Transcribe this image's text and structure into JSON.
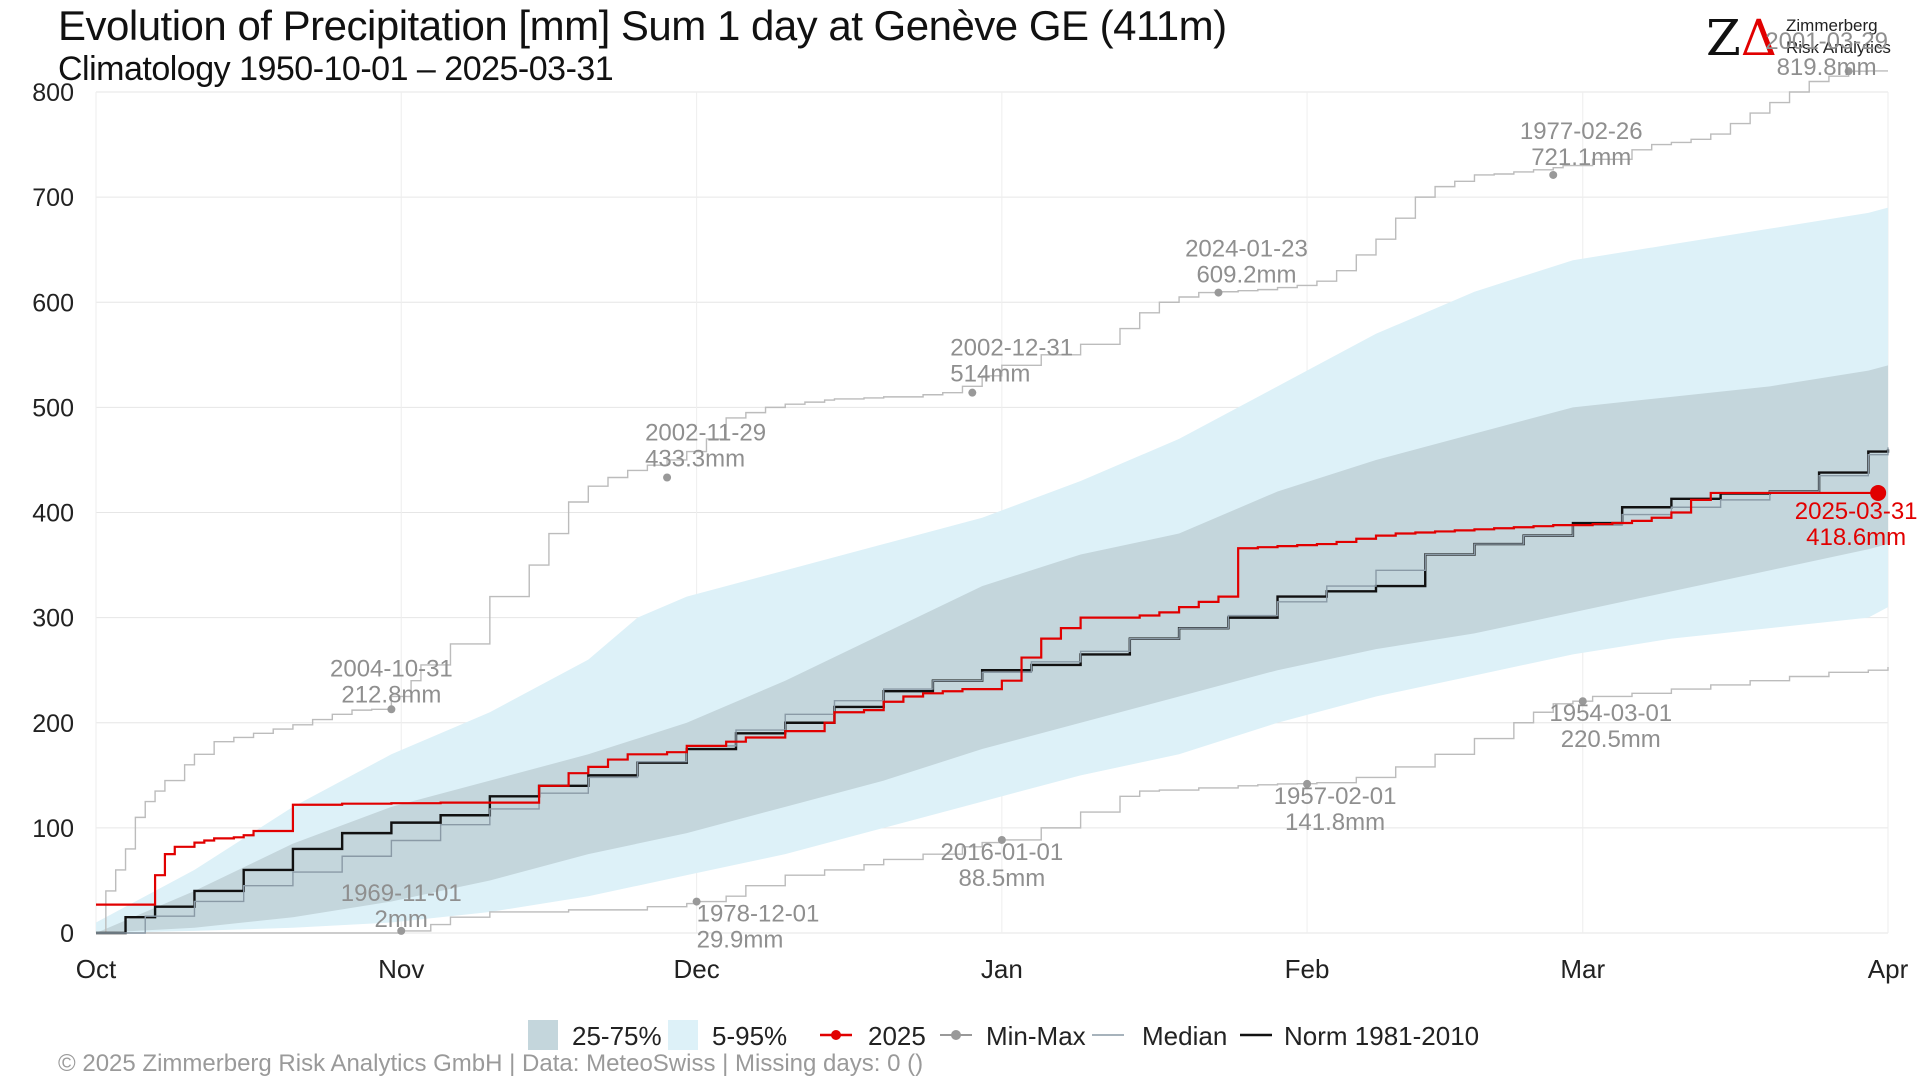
{
  "header": {
    "title": "Evolution of Precipitation [mm] Sum 1 day at Genève  GE (411m)",
    "subtitle": "Climatology 1950-10-01 – 2025-03-31"
  },
  "logo": {
    "line1": "Zimmerberg",
    "line2": "Risk Analytics"
  },
  "footer": {
    "credit": "©  2025 Zimmerberg Risk Analytics GmbH | Data: MeteoSwiss | Missing days: 0 ()"
  },
  "legend": {
    "items": [
      {
        "label": "25-75%"
      },
      {
        "label": "5-95%"
      },
      {
        "label": "2025"
      },
      {
        "label": "Min-Max"
      },
      {
        "label": "Median"
      },
      {
        "label": "Norm 1981-2010"
      }
    ]
  },
  "colors": {
    "band_25_75": "#c4d6dc",
    "band_5_95": "#ddf1f8",
    "current": "#e10000",
    "minmax": "#bcbcbc",
    "median": "#8a9aa6",
    "norm": "#111111",
    "annotation": "#8f8f8f"
  },
  "chart_data": {
    "type": "line",
    "x_unit": "days since Oct 1",
    "xlim": [
      0,
      182
    ],
    "ylim": [
      0,
      800
    ],
    "yticks": [
      0,
      100,
      200,
      300,
      400,
      500,
      600,
      700,
      800
    ],
    "month_ticks": [
      {
        "label": "Oct",
        "day": 0
      },
      {
        "label": "Nov",
        "day": 31
      },
      {
        "label": "Dec",
        "day": 61
      },
      {
        "label": "Jan",
        "day": 92
      },
      {
        "label": "Feb",
        "day": 123
      },
      {
        "label": "Mar",
        "day": 151
      },
      {
        "label": "Apr",
        "day": 182
      }
    ],
    "series": [
      {
        "name": "Max",
        "x": [
          0,
          1,
          2,
          3,
          4,
          5,
          6,
          7,
          9,
          10,
          12,
          14,
          16,
          18,
          20,
          22,
          24,
          26,
          28,
          30,
          32,
          33,
          36,
          40,
          44,
          46,
          48,
          50,
          52,
          54,
          56,
          58,
          60,
          62,
          64,
          66,
          68,
          70,
          72,
          74,
          75,
          78,
          80,
          84,
          86,
          88,
          90,
          92,
          96,
          100,
          104,
          106,
          108,
          110,
          112,
          114,
          116,
          118,
          120,
          122,
          124,
          126,
          128,
          130,
          132,
          134,
          136,
          138,
          140,
          142,
          144,
          146,
          148,
          149,
          152,
          156,
          158,
          160,
          162,
          164,
          166,
          168,
          170,
          172,
          174,
          176,
          178,
          180,
          181,
          182
        ],
        "values": [
          0,
          40,
          60,
          80,
          110,
          125,
          135,
          145,
          160,
          170,
          182,
          186,
          190,
          194,
          198,
          203,
          208,
          212,
          212.8,
          225,
          240,
          255,
          275,
          320,
          350,
          380,
          410,
          425,
          433.3,
          440,
          445,
          450,
          458,
          470,
          490,
          495,
          500,
          503,
          505,
          507,
          508,
          509,
          510,
          512,
          514,
          520,
          530,
          540,
          550,
          560,
          575,
          590,
          600,
          605,
          609.2,
          610,
          611,
          612,
          614,
          616,
          620,
          630,
          645,
          660,
          680,
          700,
          710,
          715,
          721.1,
          722,
          724,
          726,
          728,
          730,
          736,
          745,
          750,
          752,
          755,
          760,
          770,
          780,
          790,
          800,
          810,
          815,
          819.8,
          820,
          820,
          820
        ]
      },
      {
        "name": "Min",
        "x": [
          0,
          31,
          34,
          36,
          40,
          48,
          56,
          60,
          61,
          64,
          66,
          70,
          74,
          78,
          80,
          84,
          88,
          90,
          92,
          96,
          100,
          104,
          106,
          108,
          112,
          116,
          118,
          120,
          122,
          124,
          128,
          132,
          136,
          140,
          144,
          146,
          148,
          150,
          152,
          156,
          160,
          164,
          168,
          172,
          176,
          180,
          182
        ],
        "values": [
          0,
          2,
          8,
          15,
          20,
          22,
          25,
          28,
          29.9,
          35,
          45,
          55,
          60,
          65,
          70,
          75,
          82,
          86,
          88.5,
          100,
          115,
          130,
          135,
          136,
          138,
          140,
          141,
          141.8,
          142,
          143,
          148,
          158,
          170,
          185,
          200,
          210,
          218,
          220.5,
          225,
          228,
          232,
          236,
          240,
          244,
          248,
          250,
          253
        ]
      },
      {
        "name": "Norm 1981-2010",
        "x": [
          0,
          3,
          6,
          10,
          15,
          20,
          25,
          30,
          35,
          40,
          45,
          50,
          55,
          60,
          65,
          70,
          75,
          80,
          85,
          90,
          95,
          100,
          105,
          110,
          115,
          120,
          125,
          130,
          135,
          140,
          145,
          150,
          155,
          160,
          165,
          170,
          175,
          180,
          182
        ],
        "values": [
          0,
          15,
          25,
          40,
          60,
          80,
          95,
          105,
          112,
          130,
          140,
          150,
          162,
          175,
          190,
          200,
          215,
          230,
          240,
          250,
          255,
          265,
          280,
          290,
          300,
          320,
          325,
          330,
          360,
          370,
          378,
          390,
          405,
          413,
          418,
          420,
          438,
          458,
          460
        ]
      },
      {
        "name": "Median",
        "x": [
          0,
          5,
          10,
          15,
          20,
          25,
          30,
          35,
          40,
          45,
          50,
          55,
          60,
          65,
          70,
          75,
          80,
          85,
          90,
          95,
          100,
          105,
          110,
          115,
          120,
          125,
          130,
          135,
          140,
          145,
          150,
          155,
          160,
          165,
          170,
          175,
          180,
          182
        ],
        "values": [
          0,
          16,
          30,
          45,
          58,
          73,
          88,
          103,
          118,
          133,
          148,
          163,
          178,
          193,
          208,
          221,
          232,
          240,
          248,
          258,
          268,
          280,
          290,
          302,
          315,
          330,
          345,
          360,
          370,
          378,
          388,
          398,
          405,
          412,
          420,
          435,
          455,
          462
        ]
      },
      {
        "name": "2025",
        "x": [
          0,
          5,
          6,
          7,
          8,
          10,
          11,
          12,
          14,
          15,
          16,
          20,
          25,
          30,
          35,
          36,
          40,
          44,
          45,
          48,
          50,
          52,
          54,
          58,
          60,
          64,
          66,
          70,
          74,
          75,
          78,
          80,
          82,
          84,
          86,
          88,
          90,
          92,
          94,
          96,
          98,
          100,
          102,
          104,
          106,
          108,
          110,
          112,
          114,
          116,
          118,
          120,
          122,
          124,
          126,
          128,
          130,
          132,
          134,
          136,
          138,
          140,
          142,
          144,
          146,
          148,
          150,
          152,
          154,
          156,
          158,
          160,
          162,
          164,
          166,
          168,
          170,
          172,
          174,
          176,
          178,
          180,
          181
        ],
        "values": [
          27,
          27,
          55,
          75,
          82,
          86,
          88,
          90,
          91,
          93,
          97,
          122,
          123,
          123.5,
          124,
          124,
          124,
          124,
          140,
          152,
          158,
          165,
          170,
          172,
          178,
          182,
          186,
          192,
          200,
          210,
          212,
          220,
          225,
          228,
          230,
          232,
          232,
          240,
          262,
          280,
          290,
          300,
          300,
          300,
          302,
          305,
          310,
          315,
          320,
          366,
          367,
          368,
          369,
          370,
          372,
          375,
          378,
          380,
          381,
          382,
          383,
          384,
          385,
          386,
          387,
          388,
          388,
          389,
          390,
          392,
          395,
          400,
          412,
          418.6,
          418.6,
          418.6,
          418.6,
          418.6,
          418.6,
          418.6,
          418.6,
          418.6,
          418.6
        ]
      }
    ],
    "bands": [
      {
        "name": "25-75%",
        "x": [
          0,
          10,
          20,
          30,
          40,
          50,
          60,
          70,
          80,
          90,
          100,
          110,
          120,
          130,
          140,
          150,
          160,
          170,
          180,
          182
        ],
        "lower": [
          0,
          5,
          15,
          30,
          50,
          75,
          95,
          120,
          145,
          175,
          200,
          225,
          250,
          270,
          285,
          305,
          325,
          345,
          365,
          370
        ],
        "upper": [
          0,
          40,
          85,
          120,
          145,
          170,
          200,
          240,
          285,
          330,
          360,
          380,
          420,
          450,
          475,
          500,
          510,
          520,
          535,
          540
        ]
      },
      {
        "name": "5-95%",
        "x": [
          0,
          10,
          20,
          30,
          40,
          50,
          55,
          60,
          70,
          80,
          90,
          100,
          110,
          120,
          130,
          140,
          150,
          160,
          170,
          180,
          182
        ],
        "lower": [
          0,
          2,
          5,
          10,
          20,
          35,
          45,
          55,
          75,
          100,
          125,
          150,
          170,
          200,
          225,
          245,
          265,
          280,
          290,
          300,
          310
        ],
        "upper": [
          10,
          60,
          120,
          170,
          210,
          260,
          300,
          320,
          345,
          370,
          395,
          430,
          470,
          520,
          570,
          610,
          640,
          655,
          670,
          685,
          690
        ]
      }
    ],
    "annotations": [
      {
        "date": "2004-10-31",
        "value": "212.8mm",
        "x": 30,
        "y": 212.8
      },
      {
        "date": "2002-11-29",
        "value": "433.3mm",
        "x": 58,
        "y": 433.3
      },
      {
        "date": "2002-12-31",
        "value": "514mm",
        "x": 89,
        "y": 514
      },
      {
        "date": "2024-01-23",
        "value": "609.2mm",
        "x": 114,
        "y": 609.2
      },
      {
        "date": "1977-02-26",
        "value": "721.1mm",
        "x": 148,
        "y": 721.1
      },
      {
        "date": "2001-03-29",
        "value": "819.8mm",
        "x": 178,
        "y": 819.8
      },
      {
        "date": "1969-11-01",
        "value": "2mm",
        "x": 31,
        "y": 2
      },
      {
        "date": "1978-12-01",
        "value": "29.9mm",
        "x": 61,
        "y": 29.9
      },
      {
        "date": "2016-01-01",
        "value": "88.5mm",
        "x": 92,
        "y": 88.5
      },
      {
        "date": "1957-02-01",
        "value": "141.8mm",
        "x": 123,
        "y": 141.8
      },
      {
        "date": "1954-03-01",
        "value": "220.5mm",
        "x": 151,
        "y": 220.5
      },
      {
        "date": "2025-03-31",
        "value": "418.6mm",
        "x": 181,
        "y": 418.6
      }
    ]
  }
}
